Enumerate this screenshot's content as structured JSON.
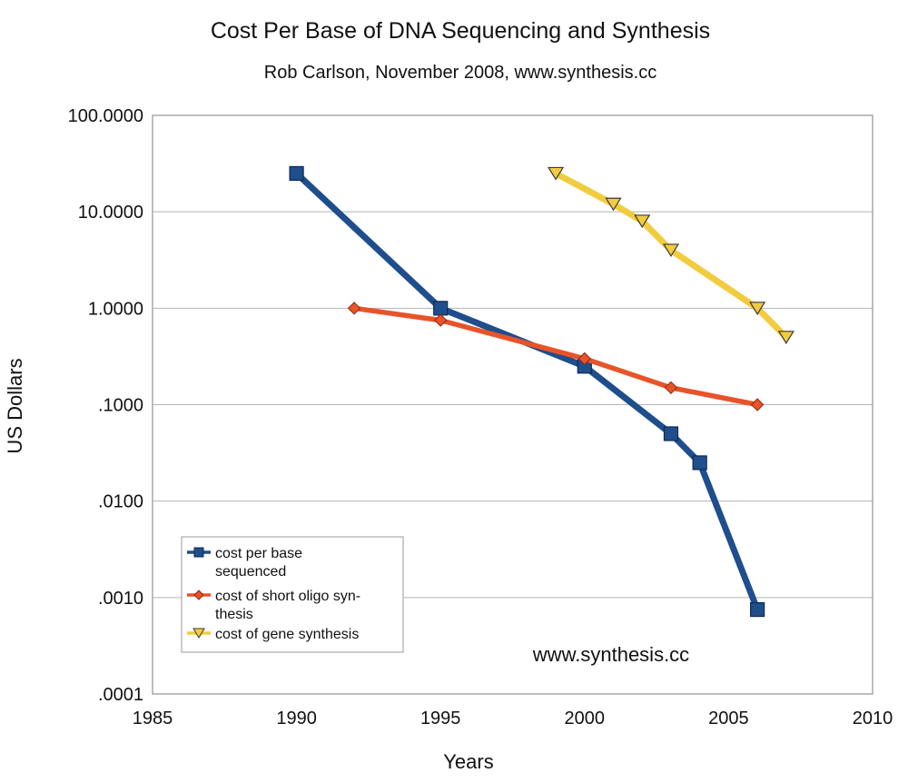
{
  "chart_data": {
    "type": "line",
    "title": "Cost Per Base of DNA Sequencing and Synthesis",
    "subtitle": "Rob Carlson, November 2008, www.synthesis.cc",
    "xlabel": "Years",
    "ylabel": "US Dollars",
    "xlim": [
      1985,
      2010
    ],
    "ylim": [
      0.0001,
      100
    ],
    "yscale": "log",
    "grid": true,
    "x_ticks": [
      1985,
      1990,
      1995,
      2000,
      2005,
      2010
    ],
    "x_tick_labels": [
      "1985",
      "1990",
      "1995",
      "2000",
      "2005",
      "2010"
    ],
    "y_ticks": [
      100,
      10,
      1,
      0.1,
      0.01,
      0.001,
      0.0001
    ],
    "y_tick_labels": [
      "100.0000",
      "10.0000",
      "1.0000",
      ".1000",
      ".0100",
      ".0010",
      ".0001"
    ],
    "legend_position": "bottom-left",
    "annotation": "www.synthesis.cc",
    "series": [
      {
        "name": "cost per base sequenced",
        "legend_lines": [
          "cost per base",
          "sequenced"
        ],
        "color": "#1f4e8c",
        "marker": "square",
        "points": [
          [
            1990,
            25
          ],
          [
            1995,
            1.0
          ],
          [
            2000,
            0.25
          ],
          [
            2003,
            0.05
          ],
          [
            2004,
            0.025
          ],
          [
            2006,
            0.00075
          ]
        ]
      },
      {
        "name": "cost of short oligo synthesis",
        "legend_lines": [
          "cost of short oligo syn-",
          "thesis"
        ],
        "color": "#e8532a",
        "marker": "diamond",
        "points": [
          [
            1992,
            1.0
          ],
          [
            1995,
            0.75
          ],
          [
            2000,
            0.3
          ],
          [
            2003,
            0.15
          ],
          [
            2006,
            0.1
          ]
        ]
      },
      {
        "name": "cost of gene synthesis",
        "legend_lines": [
          "cost of gene synthesis"
        ],
        "color": "#f2cc3f",
        "marker": "triangle-down",
        "points": [
          [
            1999,
            25
          ],
          [
            2001,
            12
          ],
          [
            2002,
            8
          ],
          [
            2003,
            4
          ],
          [
            2006,
            1.0
          ],
          [
            2007,
            0.5
          ]
        ]
      }
    ]
  }
}
